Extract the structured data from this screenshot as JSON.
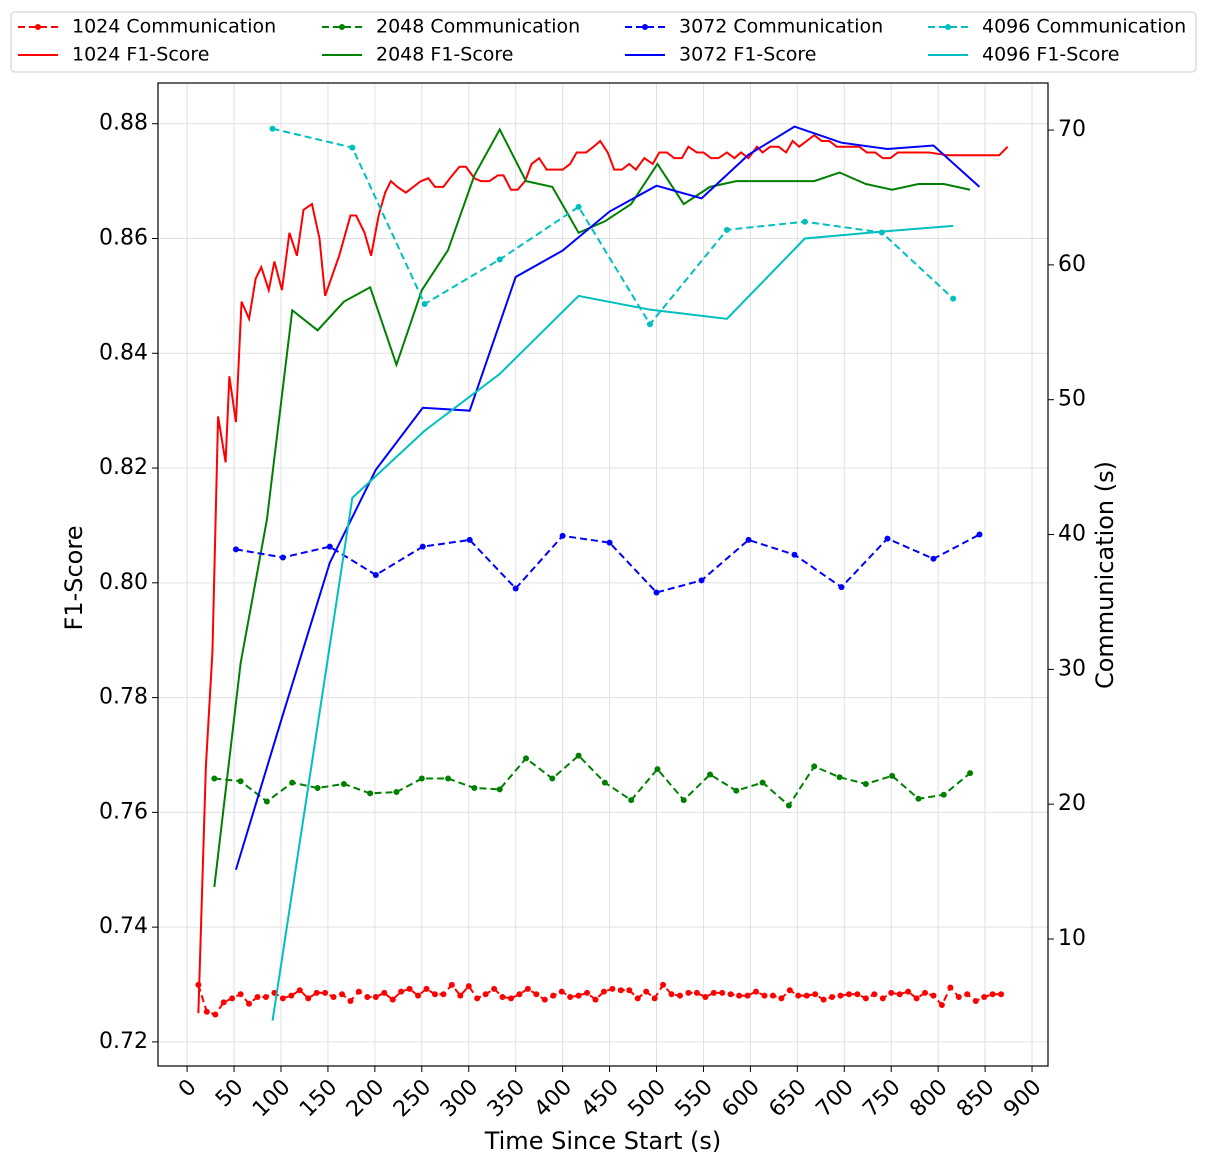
{
  "chart_data": {
    "type": "line",
    "x_label": "Time Since Start (s)",
    "y_label": "F1-Score",
    "y2_label": "Communication (s)",
    "xlim": [
      -31,
      917
    ],
    "ylim": [
      0.7158,
      0.8871
    ],
    "y2lim": [
      0.58,
      73.49
    ],
    "xticks": [
      0,
      50,
      100,
      150,
      200,
      250,
      300,
      350,
      400,
      450,
      500,
      550,
      600,
      650,
      700,
      750,
      800,
      850,
      900
    ],
    "yticks": [
      0.72,
      0.74,
      0.76,
      0.78,
      {
        "value": 0.8,
        "label": "0.80"
      },
      0.82,
      0.84,
      0.86,
      0.88
    ],
    "y2ticks": [
      10,
      20,
      30,
      40,
      50,
      60,
      70
    ],
    "grid": true,
    "legend": "top",
    "series": [
      {
        "name": "1024 Communication",
        "color": "red",
        "axis": "y2",
        "dashed": true,
        "markers": true,
        "x": [
          12,
          21,
          30,
          39,
          48,
          57,
          66,
          75,
          84,
          93,
          102,
          111,
          120,
          129,
          138,
          147,
          156,
          165,
          174,
          183,
          192,
          201,
          210,
          219,
          228,
          237,
          246,
          255,
          264,
          273,
          282,
          291,
          300,
          309,
          318,
          327,
          336,
          345,
          354,
          363,
          372,
          381,
          390,
          399,
          408,
          417,
          426,
          435,
          444,
          453,
          462,
          471,
          480,
          489,
          498,
          507,
          516,
          525,
          534,
          543,
          552,
          561,
          570,
          579,
          588,
          597,
          606,
          615,
          624,
          633,
          642,
          651,
          660,
          669,
          678,
          687,
          696,
          705,
          714,
          723,
          732,
          741,
          750,
          759,
          768,
          777,
          786,
          795,
          804,
          813,
          822,
          831,
          840,
          849,
          858,
          867
        ],
        "values": [
          6.6,
          4.6,
          4.4,
          5.3,
          5.6,
          5.9,
          5.2,
          5.7,
          5.7,
          6.0,
          5.6,
          5.8,
          6.2,
          5.6,
          6.0,
          6.0,
          5.7,
          5.9,
          5.4,
          6.1,
          5.7,
          5.7,
          6.0,
          5.5,
          6.1,
          6.3,
          5.8,
          6.3,
          5.9,
          5.9,
          6.6,
          5.8,
          6.5,
          5.6,
          5.9,
          6.3,
          5.7,
          5.6,
          5.9,
          6.3,
          5.9,
          5.5,
          5.8,
          6.1,
          5.7,
          5.8,
          6.0,
          5.5,
          6.1,
          6.3,
          6.2,
          6.2,
          5.6,
          6.1,
          5.6,
          6.6,
          5.9,
          5.8,
          6.0,
          6.0,
          5.7,
          6.0,
          6.0,
          5.9,
          5.8,
          5.8,
          6.1,
          5.8,
          5.8,
          5.6,
          6.2,
          5.8,
          5.8,
          5.9,
          5.5,
          5.7,
          5.8,
          5.9,
          5.9,
          5.6,
          5.9,
          5.6,
          6.0,
          5.9,
          6.1,
          5.6,
          6.0,
          5.8,
          5.1,
          6.4,
          5.7,
          5.9,
          5.4,
          5.7,
          5.9,
          5.9
        ]
      },
      {
        "name": "1024 F1-Score",
        "color": "red",
        "axis": "y",
        "dashed": false,
        "markers": false,
        "x": [
          12,
          20,
          27,
          33,
          41,
          45,
          52,
          58,
          66,
          73,
          79,
          87,
          93,
          101,
          109,
          117,
          124,
          133,
          141,
          147,
          162,
          174,
          180,
          189,
          196,
          204,
          211,
          217,
          224,
          233,
          249,
          257,
          264,
          273,
          280,
          290,
          297,
          306,
          313,
          322,
          331,
          337,
          345,
          352,
          360,
          367,
          375,
          383,
          391,
          400,
          408,
          415,
          425,
          433,
          440,
          448,
          455,
          463,
          471,
          478,
          487,
          496,
          503,
          511,
          519,
          527,
          534,
          543,
          550,
          558,
          566,
          575,
          583,
          590,
          598,
          607,
          613,
          621,
          630,
          638,
          645,
          652,
          660,
          668,
          676,
          684,
          692,
          700,
          708,
          716,
          724,
          733,
          741,
          749,
          757,
          765,
          773,
          782,
          790,
          810,
          830,
          850,
          865,
          874
        ],
        "values": [
          0.725,
          0.768,
          0.788,
          0.829,
          0.821,
          0.836,
          0.828,
          0.849,
          0.846,
          0.853,
          0.855,
          0.851,
          0.856,
          0.851,
          0.861,
          0.857,
          0.865,
          0.866,
          0.86,
          0.85,
          0.857,
          0.864,
          0.864,
          0.861,
          0.857,
          0.864,
          0.868,
          0.87,
          0.869,
          0.868,
          0.87,
          0.8705,
          0.869,
          0.869,
          0.8705,
          0.8725,
          0.8725,
          0.8705,
          0.87,
          0.87,
          0.871,
          0.871,
          0.8685,
          0.8685,
          0.87,
          0.873,
          0.874,
          0.872,
          0.872,
          0.872,
          0.873,
          0.875,
          0.875,
          0.876,
          0.877,
          0.875,
          0.872,
          0.872,
          0.873,
          0.872,
          0.874,
          0.873,
          0.875,
          0.875,
          0.874,
          0.874,
          0.876,
          0.875,
          0.875,
          0.874,
          0.874,
          0.875,
          0.874,
          0.875,
          0.874,
          0.876,
          0.875,
          0.876,
          0.876,
          0.875,
          0.877,
          0.876,
          0.877,
          0.878,
          0.877,
          0.877,
          0.876,
          0.876,
          0.876,
          0.876,
          0.875,
          0.875,
          0.874,
          0.874,
          0.875,
          0.875,
          0.875,
          0.875,
          0.875,
          0.8745,
          0.8745,
          0.8745,
          0.8745,
          0.876
        ]
      },
      {
        "name": "2048 Communication",
        "color": "green",
        "axis": "y2",
        "dashed": true,
        "markers": true,
        "x": [
          29,
          57,
          85,
          112,
          139,
          167,
          195,
          223,
          250,
          278,
          306,
          333,
          361,
          389,
          417,
          445,
          473,
          501,
          529,
          557,
          585,
          613,
          641,
          668,
          695,
          723,
          751,
          779,
          806,
          834
        ],
        "values": [
          21.9,
          21.7,
          20.2,
          21.6,
          21.2,
          21.5,
          20.8,
          20.9,
          21.9,
          21.9,
          21.2,
          21.1,
          23.4,
          21.9,
          23.6,
          21.6,
          20.3,
          22.6,
          20.3,
          22.2,
          21.0,
          21.6,
          19.9,
          22.8,
          22.0,
          21.5,
          22.1,
          20.4,
          20.7,
          22.3
        ]
      },
      {
        "name": "2048 F1-Score",
        "color": "green",
        "axis": "y",
        "dashed": false,
        "markers": false,
        "x": [
          29,
          57,
          85,
          112,
          139,
          167,
          195,
          223,
          250,
          278,
          306,
          333,
          361,
          389,
          417,
          445,
          473,
          501,
          529,
          557,
          585,
          613,
          641,
          668,
          695,
          723,
          751,
          779,
          806,
          834
        ],
        "values": [
          0.747,
          0.786,
          0.811,
          0.8475,
          0.844,
          0.849,
          0.8515,
          0.838,
          0.851,
          0.858,
          0.871,
          0.879,
          0.87,
          0.869,
          0.861,
          0.863,
          0.866,
          0.873,
          0.866,
          0.869,
          0.87,
          0.87,
          0.87,
          0.87,
          0.8715,
          0.8695,
          0.8685,
          0.8695,
          0.8695,
          0.8685
        ]
      },
      {
        "name": "3072 Communication",
        "color": "blue",
        "axis": "y2",
        "dashed": true,
        "markers": true,
        "x": [
          52,
          102,
          152,
          201,
          251,
          301,
          350,
          400,
          450,
          500,
          548,
          598,
          647,
          697,
          746,
          795,
          844
        ],
        "values": [
          38.9,
          38.3,
          39.1,
          37.0,
          39.1,
          39.6,
          36.0,
          39.9,
          39.4,
          35.7,
          36.6,
          39.6,
          38.5,
          36.1,
          39.7,
          38.2,
          40.0
        ]
      },
      {
        "name": "3072 F1-Score",
        "color": "blue",
        "axis": "y",
        "dashed": false,
        "markers": false,
        "x": [
          52,
          102,
          152,
          201,
          251,
          301,
          350,
          400,
          450,
          500,
          548,
          598,
          647,
          697,
          746,
          795,
          844
        ],
        "values": [
          0.75,
          0.777,
          0.8035,
          0.8197,
          0.8305,
          0.83,
          0.8533,
          0.8579,
          0.8647,
          0.8692,
          0.867,
          0.8746,
          0.8795,
          0.8767,
          0.8756,
          0.8762,
          0.869
        ]
      },
      {
        "name": "4096 Communication",
        "color": "#00bfbf",
        "axis": "y2",
        "dashed": true,
        "markers": true,
        "x": [
          91,
          176,
          253,
          333,
          417,
          493,
          575,
          658,
          740,
          816
        ],
        "values": [
          70.1,
          68.7,
          57.1,
          60.4,
          64.3,
          55.6,
          62.6,
          63.2,
          62.4,
          57.5
        ]
      },
      {
        "name": "4096 F1-Score",
        "color": "#00bfbf",
        "axis": "y",
        "dashed": false,
        "markers": false,
        "x": [
          91,
          176,
          253,
          333,
          417,
          493,
          575,
          658,
          740,
          816
        ],
        "values": [
          0.7237,
          0.8148,
          0.8265,
          0.8364,
          0.85,
          0.8476,
          0.846,
          0.86,
          0.8612,
          0.8622
        ]
      }
    ]
  }
}
